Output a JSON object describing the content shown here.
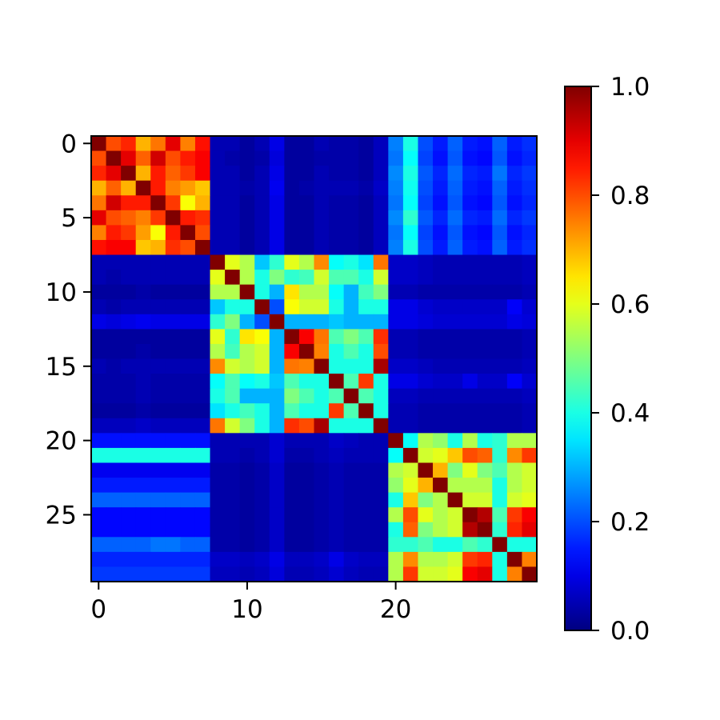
{
  "chart_data": {
    "type": "heatmap",
    "colormap": "jet",
    "title": "",
    "xlabel": "",
    "ylabel": "",
    "n_rows": 30,
    "n_cols": 30,
    "x_ticks": [
      {
        "value": 0,
        "label": "0"
      },
      {
        "value": 10,
        "label": "10"
      },
      {
        "value": 20,
        "label": "20"
      }
    ],
    "y_ticks": [
      {
        "value": 0,
        "label": "0"
      },
      {
        "value": 5,
        "label": "5"
      },
      {
        "value": 10,
        "label": "10"
      },
      {
        "value": 15,
        "label": "15"
      },
      {
        "value": 20,
        "label": "20"
      },
      {
        "value": 25,
        "label": "25"
      }
    ],
    "colorbar": {
      "vmin": 0.0,
      "vmax": 1.0,
      "ticks": [
        {
          "value": 0.0,
          "label": "0.0"
        },
        {
          "value": 0.2,
          "label": "0.2"
        },
        {
          "value": 0.4,
          "label": "0.4"
        },
        {
          "value": 0.6,
          "label": "0.6"
        },
        {
          "value": 0.8,
          "label": "0.8"
        },
        {
          "value": 1.0,
          "label": "1.0"
        }
      ]
    },
    "values": [
      [
        1.0,
        0.8,
        0.84,
        0.7,
        0.76,
        0.9,
        0.75,
        0.86,
        0.05,
        0.05,
        0.03,
        0.05,
        0.1,
        0.03,
        0.03,
        0.05,
        0.04,
        0.04,
        0.03,
        0.06,
        0.25,
        0.4,
        0.2,
        0.15,
        0.22,
        0.15,
        0.14,
        0.22,
        0.15,
        0.17
      ],
      [
        0.8,
        1.0,
        0.9,
        0.78,
        0.92,
        0.8,
        0.85,
        0.88,
        0.05,
        0.04,
        0.03,
        0.04,
        0.09,
        0.03,
        0.03,
        0.04,
        0.04,
        0.04,
        0.03,
        0.06,
        0.24,
        0.38,
        0.19,
        0.14,
        0.21,
        0.14,
        0.13,
        0.21,
        0.14,
        0.16
      ],
      [
        0.84,
        0.9,
        1.0,
        0.7,
        0.85,
        0.78,
        0.82,
        0.88,
        0.05,
        0.05,
        0.03,
        0.05,
        0.1,
        0.03,
        0.03,
        0.05,
        0.04,
        0.04,
        0.03,
        0.06,
        0.26,
        0.4,
        0.21,
        0.16,
        0.23,
        0.16,
        0.15,
        0.24,
        0.16,
        0.18
      ],
      [
        0.7,
        0.78,
        0.7,
        1.0,
        0.85,
        0.75,
        0.72,
        0.68,
        0.05,
        0.05,
        0.04,
        0.05,
        0.11,
        0.03,
        0.04,
        0.05,
        0.05,
        0.05,
        0.04,
        0.07,
        0.25,
        0.39,
        0.2,
        0.15,
        0.22,
        0.15,
        0.14,
        0.22,
        0.15,
        0.17
      ],
      [
        0.76,
        0.92,
        0.85,
        0.85,
        1.0,
        0.82,
        0.62,
        0.7,
        0.05,
        0.05,
        0.03,
        0.05,
        0.1,
        0.03,
        0.03,
        0.05,
        0.04,
        0.04,
        0.03,
        0.06,
        0.24,
        0.38,
        0.19,
        0.14,
        0.21,
        0.14,
        0.13,
        0.21,
        0.14,
        0.16
      ],
      [
        0.9,
        0.8,
        0.78,
        0.75,
        0.82,
        1.0,
        0.85,
        0.83,
        0.05,
        0.05,
        0.03,
        0.05,
        0.1,
        0.03,
        0.03,
        0.05,
        0.04,
        0.04,
        0.03,
        0.06,
        0.26,
        0.42,
        0.21,
        0.16,
        0.23,
        0.16,
        0.15,
        0.23,
        0.16,
        0.18
      ],
      [
        0.75,
        0.85,
        0.82,
        0.72,
        0.62,
        0.85,
        1.0,
        0.8,
        0.05,
        0.05,
        0.03,
        0.05,
        0.1,
        0.03,
        0.03,
        0.05,
        0.04,
        0.04,
        0.03,
        0.06,
        0.24,
        0.38,
        0.19,
        0.14,
        0.21,
        0.14,
        0.13,
        0.21,
        0.14,
        0.16
      ],
      [
        0.86,
        0.88,
        0.88,
        0.68,
        0.7,
        0.83,
        0.8,
        1.0,
        0.05,
        0.05,
        0.03,
        0.05,
        0.1,
        0.03,
        0.03,
        0.05,
        0.04,
        0.04,
        0.03,
        0.06,
        0.25,
        0.4,
        0.2,
        0.15,
        0.22,
        0.15,
        0.14,
        0.22,
        0.15,
        0.17
      ],
      [
        0.05,
        0.05,
        0.05,
        0.05,
        0.05,
        0.05,
        0.05,
        0.05,
        1.0,
        0.6,
        0.55,
        0.32,
        0.42,
        0.6,
        0.55,
        0.74,
        0.38,
        0.4,
        0.35,
        0.76,
        0.07,
        0.07,
        0.06,
        0.05,
        0.05,
        0.05,
        0.05,
        0.05,
        0.05,
        0.06
      ],
      [
        0.05,
        0.04,
        0.05,
        0.05,
        0.05,
        0.05,
        0.05,
        0.05,
        0.6,
        1.0,
        0.55,
        0.4,
        0.5,
        0.42,
        0.44,
        0.58,
        0.45,
        0.45,
        0.4,
        0.58,
        0.07,
        0.07,
        0.06,
        0.05,
        0.05,
        0.05,
        0.05,
        0.05,
        0.05,
        0.06
      ],
      [
        0.03,
        0.03,
        0.03,
        0.04,
        0.03,
        0.03,
        0.03,
        0.03,
        0.55,
        0.55,
        1.0,
        0.4,
        0.3,
        0.65,
        0.55,
        0.55,
        0.38,
        0.3,
        0.44,
        0.5,
        0.05,
        0.05,
        0.04,
        0.04,
        0.04,
        0.04,
        0.04,
        0.04,
        0.04,
        0.05
      ],
      [
        0.05,
        0.04,
        0.05,
        0.05,
        0.05,
        0.05,
        0.05,
        0.05,
        0.32,
        0.4,
        0.4,
        1.0,
        0.2,
        0.62,
        0.58,
        0.58,
        0.4,
        0.3,
        0.4,
        0.4,
        0.1,
        0.1,
        0.08,
        0.07,
        0.07,
        0.07,
        0.07,
        0.07,
        0.12,
        0.08
      ],
      [
        0.1,
        0.09,
        0.1,
        0.11,
        0.1,
        0.1,
        0.1,
        0.1,
        0.42,
        0.5,
        0.3,
        0.2,
        1.0,
        0.3,
        0.3,
        0.3,
        0.32,
        0.3,
        0.3,
        0.3,
        0.1,
        0.1,
        0.09,
        0.08,
        0.08,
        0.08,
        0.08,
        0.08,
        0.1,
        0.09
      ],
      [
        0.03,
        0.03,
        0.03,
        0.03,
        0.03,
        0.03,
        0.03,
        0.03,
        0.6,
        0.42,
        0.65,
        0.62,
        0.3,
        1.0,
        0.88,
        0.76,
        0.45,
        0.5,
        0.45,
        0.83,
        0.05,
        0.05,
        0.04,
        0.04,
        0.04,
        0.04,
        0.04,
        0.04,
        0.04,
        0.05
      ],
      [
        0.03,
        0.03,
        0.03,
        0.04,
        0.03,
        0.03,
        0.03,
        0.03,
        0.55,
        0.44,
        0.55,
        0.58,
        0.3,
        0.88,
        1.0,
        0.75,
        0.4,
        0.45,
        0.4,
        0.8,
        0.05,
        0.05,
        0.04,
        0.04,
        0.04,
        0.04,
        0.04,
        0.04,
        0.04,
        0.05
      ],
      [
        0.05,
        0.04,
        0.05,
        0.05,
        0.05,
        0.05,
        0.05,
        0.05,
        0.74,
        0.58,
        0.55,
        0.58,
        0.3,
        0.76,
        0.75,
        1.0,
        0.4,
        0.4,
        0.4,
        0.96,
        0.07,
        0.07,
        0.06,
        0.05,
        0.05,
        0.05,
        0.05,
        0.05,
        0.05,
        0.06
      ],
      [
        0.04,
        0.04,
        0.04,
        0.05,
        0.04,
        0.04,
        0.04,
        0.04,
        0.38,
        0.45,
        0.38,
        0.4,
        0.32,
        0.45,
        0.4,
        0.4,
        1.0,
        0.45,
        0.82,
        0.4,
        0.1,
        0.1,
        0.08,
        0.07,
        0.07,
        0.1,
        0.07,
        0.07,
        0.12,
        0.08
      ],
      [
        0.04,
        0.04,
        0.04,
        0.05,
        0.04,
        0.04,
        0.04,
        0.04,
        0.4,
        0.45,
        0.3,
        0.3,
        0.3,
        0.5,
        0.45,
        0.4,
        0.45,
        1.0,
        0.45,
        0.4,
        0.06,
        0.06,
        0.05,
        0.05,
        0.05,
        0.05,
        0.05,
        0.05,
        0.05,
        0.06
      ],
      [
        0.03,
        0.03,
        0.03,
        0.04,
        0.03,
        0.03,
        0.03,
        0.03,
        0.35,
        0.4,
        0.44,
        0.4,
        0.3,
        0.45,
        0.4,
        0.4,
        0.82,
        0.45,
        1.0,
        0.4,
        0.05,
        0.05,
        0.04,
        0.04,
        0.04,
        0.04,
        0.04,
        0.04,
        0.04,
        0.05
      ],
      [
        0.06,
        0.06,
        0.06,
        0.07,
        0.06,
        0.06,
        0.06,
        0.06,
        0.76,
        0.58,
        0.5,
        0.4,
        0.3,
        0.83,
        0.8,
        0.96,
        0.4,
        0.4,
        0.4,
        1.0,
        0.05,
        0.05,
        0.04,
        0.04,
        0.04,
        0.04,
        0.04,
        0.04,
        0.04,
        0.05
      ],
      [
        0.14,
        0.14,
        0.14,
        0.14,
        0.14,
        0.14,
        0.14,
        0.14,
        0.05,
        0.05,
        0.05,
        0.05,
        0.08,
        0.05,
        0.05,
        0.05,
        0.07,
        0.06,
        0.05,
        0.05,
        1.0,
        0.38,
        0.55,
        0.52,
        0.4,
        0.55,
        0.4,
        0.42,
        0.55,
        0.55
      ],
      [
        0.4,
        0.4,
        0.4,
        0.4,
        0.4,
        0.4,
        0.4,
        0.4,
        0.05,
        0.05,
        0.04,
        0.05,
        0.08,
        0.04,
        0.04,
        0.05,
        0.06,
        0.05,
        0.05,
        0.05,
        0.38,
        1.0,
        0.58,
        0.6,
        0.68,
        0.8,
        0.78,
        0.42,
        0.74,
        0.82
      ],
      [
        0.11,
        0.11,
        0.11,
        0.11,
        0.11,
        0.11,
        0.11,
        0.11,
        0.04,
        0.04,
        0.03,
        0.04,
        0.07,
        0.03,
        0.03,
        0.04,
        0.05,
        0.04,
        0.04,
        0.04,
        0.55,
        0.58,
        1.0,
        0.7,
        0.5,
        0.6,
        0.5,
        0.45,
        0.55,
        0.58
      ],
      [
        0.15,
        0.15,
        0.15,
        0.15,
        0.15,
        0.15,
        0.15,
        0.15,
        0.04,
        0.04,
        0.03,
        0.04,
        0.07,
        0.03,
        0.03,
        0.04,
        0.05,
        0.04,
        0.04,
        0.04,
        0.52,
        0.6,
        0.7,
        1.0,
        0.55,
        0.55,
        0.55,
        0.4,
        0.55,
        0.58
      ],
      [
        0.22,
        0.22,
        0.22,
        0.22,
        0.22,
        0.22,
        0.22,
        0.22,
        0.04,
        0.04,
        0.03,
        0.04,
        0.07,
        0.03,
        0.03,
        0.04,
        0.05,
        0.04,
        0.04,
        0.04,
        0.4,
        0.68,
        0.5,
        0.55,
        1.0,
        0.58,
        0.58,
        0.4,
        0.58,
        0.6
      ],
      [
        0.13,
        0.13,
        0.13,
        0.13,
        0.13,
        0.13,
        0.13,
        0.13,
        0.04,
        0.04,
        0.03,
        0.04,
        0.07,
        0.03,
        0.03,
        0.04,
        0.05,
        0.04,
        0.04,
        0.04,
        0.55,
        0.8,
        0.6,
        0.55,
        0.58,
        1.0,
        0.95,
        0.45,
        0.82,
        0.88
      ],
      [
        0.13,
        0.13,
        0.13,
        0.13,
        0.13,
        0.13,
        0.13,
        0.13,
        0.04,
        0.04,
        0.03,
        0.04,
        0.07,
        0.03,
        0.03,
        0.04,
        0.05,
        0.04,
        0.04,
        0.04,
        0.4,
        0.78,
        0.5,
        0.55,
        0.58,
        0.95,
        1.0,
        0.42,
        0.84,
        0.9
      ],
      [
        0.22,
        0.22,
        0.22,
        0.22,
        0.24,
        0.24,
        0.22,
        0.22,
        0.04,
        0.04,
        0.03,
        0.04,
        0.07,
        0.03,
        0.03,
        0.04,
        0.05,
        0.04,
        0.04,
        0.04,
        0.42,
        0.42,
        0.45,
        0.4,
        0.4,
        0.45,
        0.42,
        1.0,
        0.4,
        0.4
      ],
      [
        0.16,
        0.16,
        0.16,
        0.16,
        0.16,
        0.16,
        0.16,
        0.16,
        0.07,
        0.07,
        0.06,
        0.07,
        0.1,
        0.06,
        0.06,
        0.07,
        0.1,
        0.07,
        0.06,
        0.06,
        0.55,
        0.74,
        0.55,
        0.55,
        0.58,
        0.82,
        0.84,
        0.4,
        1.0,
        0.75
      ],
      [
        0.18,
        0.18,
        0.18,
        0.18,
        0.18,
        0.18,
        0.18,
        0.18,
        0.06,
        0.06,
        0.05,
        0.06,
        0.09,
        0.05,
        0.05,
        0.06,
        0.08,
        0.06,
        0.05,
        0.05,
        0.55,
        0.82,
        0.58,
        0.58,
        0.6,
        0.88,
        0.9,
        0.4,
        0.75,
        1.0
      ]
    ]
  }
}
